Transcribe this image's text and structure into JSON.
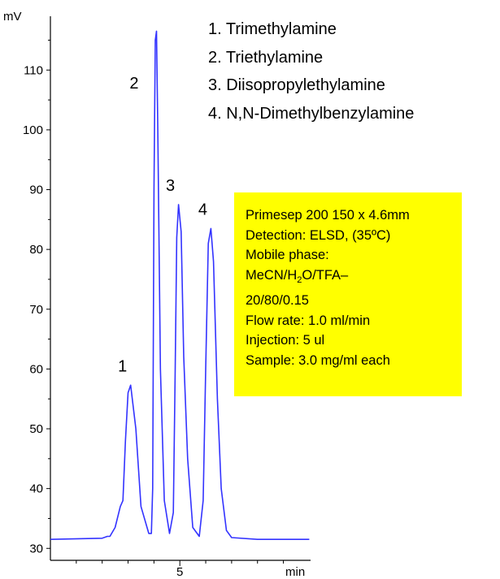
{
  "chart_data": {
    "type": "line",
    "y_unit": "mV",
    "x_unit": "min",
    "ylim": [
      28,
      119
    ],
    "xlim": [
      0,
      10.05
    ],
    "y_ticks": [
      30,
      40,
      50,
      60,
      70,
      80,
      90,
      100,
      110
    ],
    "x_ticks": [
      5
    ],
    "x_minor_ticks": [
      1,
      2,
      3,
      4,
      6,
      7,
      8,
      9
    ],
    "baseline": 31.5,
    "series": [
      {
        "color": "#3333ff",
        "x": [
          0.0,
          2.0,
          2.2,
          2.3,
          2.5,
          2.7,
          2.8,
          2.9,
          3.0,
          3.1,
          3.3,
          3.5,
          3.8,
          3.9,
          3.95,
          4.0,
          4.05,
          4.1,
          4.15,
          4.25,
          4.4,
          4.6,
          4.75,
          4.82,
          4.88,
          4.95,
          5.05,
          5.15,
          5.3,
          5.5,
          5.75,
          5.9,
          6.0,
          6.1,
          6.2,
          6.3,
          6.45,
          6.6,
          6.8,
          7.0,
          8.0,
          10.0
        ],
        "y": [
          31.5,
          31.7,
          32.0,
          32.0,
          33.5,
          37.0,
          38.0,
          48.0,
          56.0,
          57.3,
          50.0,
          37.0,
          32.5,
          32.5,
          40.0,
          90.0,
          115.0,
          116.5,
          100.0,
          60.0,
          38.0,
          32.5,
          36.0,
          60.0,
          82.0,
          87.5,
          83.0,
          62.0,
          45.0,
          33.5,
          32.0,
          38.0,
          60.0,
          81.0,
          83.5,
          78.0,
          55.0,
          40.0,
          33.0,
          31.8,
          31.5,
          31.5
        ]
      }
    ],
    "peak_labels": [
      {
        "label": "1",
        "x": 3.1,
        "y": 57.3
      },
      {
        "label": "2",
        "x": 4.05,
        "y": 116.5
      },
      {
        "label": "3",
        "x": 4.95,
        "y": 87.5
      },
      {
        "label": "4",
        "x": 6.2,
        "y": 83.5
      }
    ]
  },
  "legend": [
    "1.  Trimethylamine",
    "2.  Triethylamine",
    "3.  Diisopropylethylamine",
    "4.  N,N-Dimethylbenzylamine"
  ],
  "info_box": {
    "color": "#ffff00",
    "column": "Primesep 200 150 x 4.6mm",
    "detection": "Detection:  ELSD, (35ºC)",
    "mobile_phase_label": "Mobile phase:",
    "mobile_phase_prefix": "MeCN/H",
    "mobile_phase_sub": "2",
    "mobile_phase_suffix": "O/TFA–",
    "mobile_phase_ratio": "20/80/0.15",
    "flow_rate": "Flow rate: 1.0 ml/min",
    "injection": "Injection: 5 ul",
    "sample": "Sample:  3.0 mg/ml each"
  }
}
